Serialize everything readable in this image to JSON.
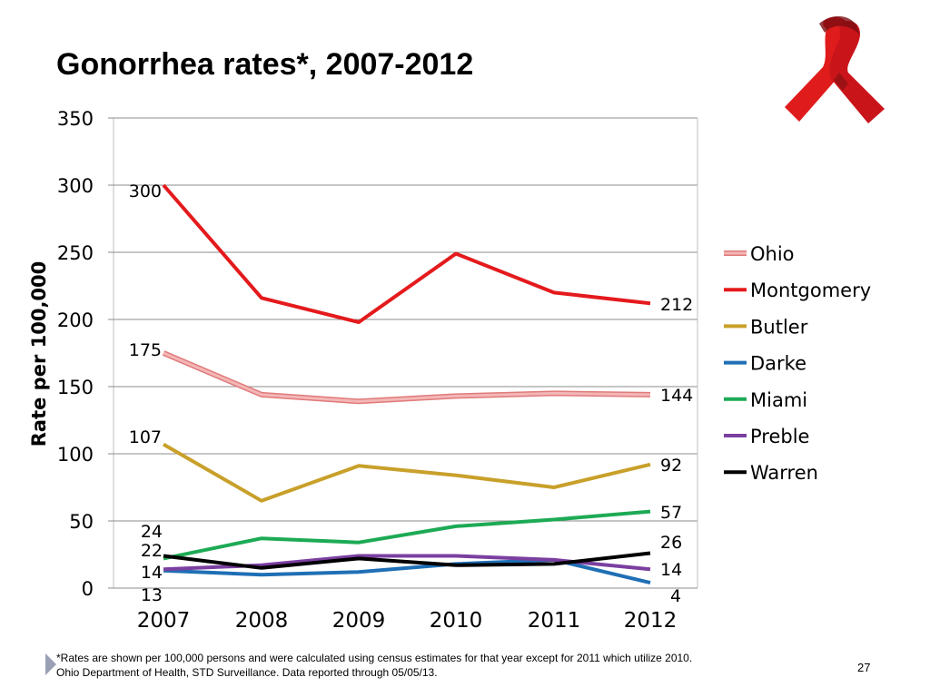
{
  "slide": {
    "title": "Gonorrhea rates*, 2007-2012",
    "footnote_line1": "*Rates are shown per 100,000 persons and were calculated using census estimates for that year except for 2011 which utilize 2010.",
    "footnote_line2": "Ohio Department of Health, STD Surveillance.  Data reported through 05/05/13.",
    "page_number": "27",
    "ribbon_icon": "red-awareness-ribbon-icon"
  },
  "chart_data": {
    "type": "line",
    "title": "",
    "xlabel": "",
    "ylabel": "Rate per 100,000",
    "ylim": [
      0,
      350
    ],
    "yticks": [
      0,
      50,
      100,
      150,
      200,
      250,
      300,
      350
    ],
    "categories": [
      "2007",
      "2008",
      "2009",
      "2010",
      "2011",
      "2012"
    ],
    "grid": "horizontal",
    "legend_position": "right",
    "series": [
      {
        "name": "Ohio",
        "color": "#f4b6b6",
        "outline": "#e07a7a",
        "values": [
          175,
          144,
          139,
          143,
          145,
          144
        ]
      },
      {
        "name": "Montgomery",
        "color": "#e41a1c",
        "values": [
          300,
          216,
          198,
          249,
          220,
          212
        ]
      },
      {
        "name": "Butler",
        "color": "#c8a02a",
        "values": [
          107,
          65,
          91,
          84,
          75,
          92
        ]
      },
      {
        "name": "Darke",
        "color": "#1f6fb5",
        "values": [
          13,
          10,
          12,
          18,
          21,
          4
        ]
      },
      {
        "name": "Miami",
        "color": "#1daa55",
        "values": [
          22,
          37,
          34,
          46,
          51,
          57
        ]
      },
      {
        "name": "Preble",
        "color": "#7b3fa0",
        "values": [
          14,
          17,
          24,
          24,
          21,
          14
        ]
      },
      {
        "name": "Warren",
        "color": "#000000",
        "values": [
          24,
          15,
          22,
          17,
          18,
          26
        ]
      }
    ],
    "data_labels": [
      {
        "text": "300",
        "category": "2007",
        "value": 300
      },
      {
        "text": "175",
        "category": "2007",
        "value": 175
      },
      {
        "text": "107",
        "category": "2007",
        "value": 107
      },
      {
        "text": "24",
        "category": "2007",
        "value": 24
      },
      {
        "text": "22",
        "category": "2007",
        "value": 22
      },
      {
        "text": "14",
        "category": "2007",
        "value": 14
      },
      {
        "text": "13",
        "category": "2007",
        "value": 13
      },
      {
        "text": "212",
        "category": "2012",
        "value": 212
      },
      {
        "text": "144",
        "category": "2012",
        "value": 144
      },
      {
        "text": "92",
        "category": "2012",
        "value": 92
      },
      {
        "text": "57",
        "category": "2012",
        "value": 57
      },
      {
        "text": "26",
        "category": "2012",
        "value": 26
      },
      {
        "text": "14",
        "category": "2012",
        "value": 14
      },
      {
        "text": "4",
        "category": "2012",
        "value": 4
      }
    ]
  }
}
